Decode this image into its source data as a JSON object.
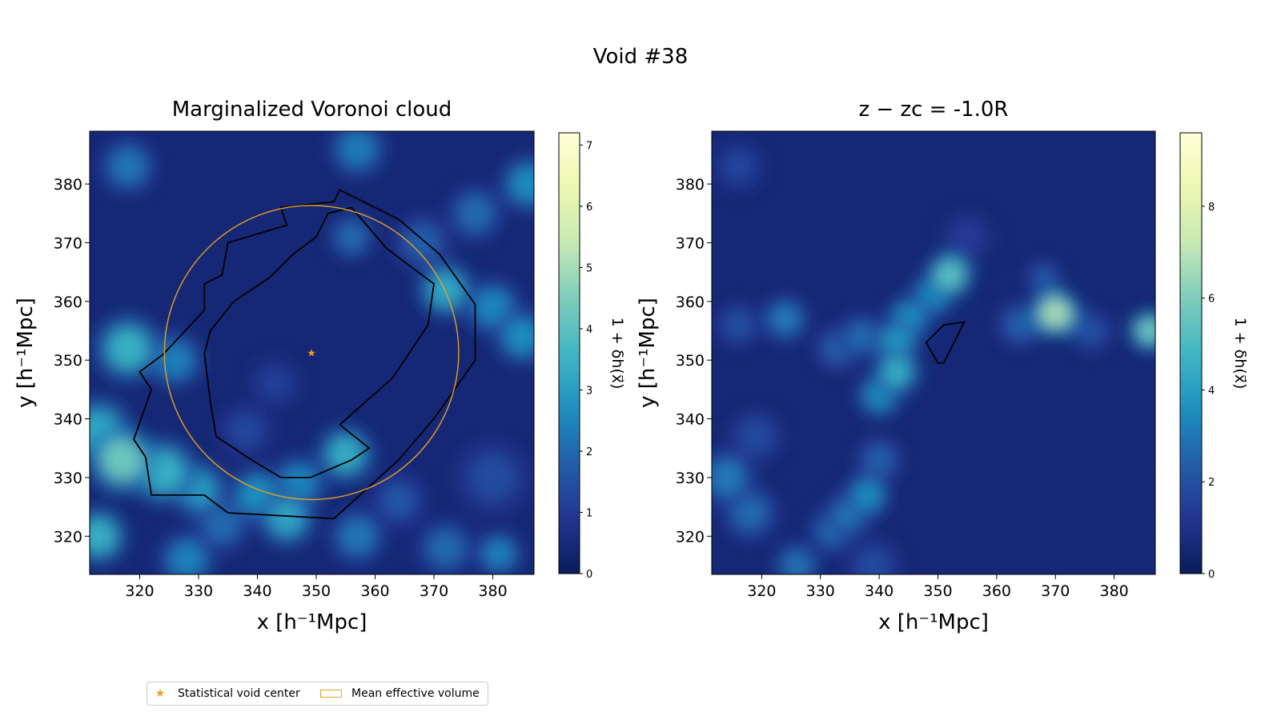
{
  "figure": {
    "suptitle": "Void #38"
  },
  "colors": {
    "colormap": "YlGnBu",
    "contour": "#000000",
    "circle": "#E8A020",
    "center_marker": "#E8A020"
  },
  "legend": {
    "center_label": "Statistical void center",
    "volume_label": "Mean effective volume"
  },
  "chart_data": [
    {
      "type": "heatmap",
      "title": "Marginalized Voronoi cloud",
      "xlabel": "x [h⁻¹Mpc]",
      "ylabel": "y [h⁻¹Mpc]",
      "xlim": [
        311.5,
        387
      ],
      "ylim": [
        313.5,
        389
      ],
      "xticks": [
        320,
        330,
        340,
        350,
        360,
        370,
        380
      ],
      "yticks": [
        320,
        330,
        340,
        350,
        360,
        370,
        380
      ],
      "colorbar": {
        "label": "1 + δh(x⃗)",
        "min": 0,
        "max": 7.2,
        "ticks": [
          0,
          1,
          2,
          3,
          4,
          5,
          6,
          7
        ]
      },
      "void_center": [
        349.2,
        351.3
      ],
      "effective_radius": 25,
      "contours": [
        [
          [
            344,
            376
          ],
          [
            353,
            377
          ],
          [
            354,
            379
          ],
          [
            364,
            374
          ],
          [
            371,
            368
          ],
          [
            377,
            359.5
          ],
          [
            377,
            350
          ],
          [
            370,
            340
          ],
          [
            364,
            333
          ],
          [
            353,
            323
          ],
          [
            335,
            324
          ],
          [
            331,
            327
          ],
          [
            322,
            327
          ],
          [
            321,
            333.5
          ],
          [
            319,
            336.5
          ],
          [
            322,
            345
          ],
          [
            320,
            348
          ],
          [
            324,
            351
          ],
          [
            331,
            358.5
          ],
          [
            331,
            363
          ],
          [
            334,
            364.5
          ],
          [
            335,
            370
          ],
          [
            345,
            373
          ]
        ],
        [
          [
            346,
            368
          ],
          [
            350,
            371
          ],
          [
            352,
            375
          ],
          [
            356,
            376
          ],
          [
            362,
            369
          ],
          [
            370,
            363
          ],
          [
            369,
            356
          ],
          [
            363,
            347
          ],
          [
            354,
            339
          ],
          [
            359,
            335
          ],
          [
            356,
            333
          ],
          [
            349,
            330
          ],
          [
            344,
            330
          ],
          [
            339,
            333
          ],
          [
            333,
            337
          ],
          [
            332,
            343
          ],
          [
            331,
            351
          ],
          [
            332,
            355
          ],
          [
            336,
            360
          ],
          [
            342,
            364
          ]
        ]
      ],
      "density_features": [
        {
          "x": 318,
          "y": 383,
          "v": 2.2,
          "r": 3
        },
        {
          "x": 357,
          "y": 386,
          "v": 2.3,
          "r": 3
        },
        {
          "x": 386,
          "y": 380,
          "v": 2.6,
          "r": 3
        },
        {
          "x": 377,
          "y": 375,
          "v": 2.0,
          "r": 3
        },
        {
          "x": 368,
          "y": 370,
          "v": 1.8,
          "r": 3
        },
        {
          "x": 356,
          "y": 371,
          "v": 2.0,
          "r": 2.5
        },
        {
          "x": 372,
          "y": 362,
          "v": 3.2,
          "r": 3
        },
        {
          "x": 380,
          "y": 359,
          "v": 2.5,
          "r": 3
        },
        {
          "x": 385,
          "y": 354,
          "v": 2.6,
          "r": 3
        },
        {
          "x": 318,
          "y": 352,
          "v": 3.4,
          "r": 3.5
        },
        {
          "x": 326,
          "y": 350,
          "v": 2.4,
          "r": 3
        },
        {
          "x": 313,
          "y": 338,
          "v": 3.2,
          "r": 3.5
        },
        {
          "x": 317,
          "y": 333,
          "v": 4.2,
          "r": 3.5
        },
        {
          "x": 324,
          "y": 331,
          "v": 3.4,
          "r": 3.5
        },
        {
          "x": 330,
          "y": 328,
          "v": 2.9,
          "r": 3
        },
        {
          "x": 340,
          "y": 327,
          "v": 2.7,
          "r": 3
        },
        {
          "x": 347,
          "y": 329,
          "v": 2.5,
          "r": 3
        },
        {
          "x": 355,
          "y": 334,
          "v": 3.3,
          "r": 3
        },
        {
          "x": 345,
          "y": 323,
          "v": 3.1,
          "r": 3
        },
        {
          "x": 357,
          "y": 320,
          "v": 2.2,
          "r": 3
        },
        {
          "x": 372,
          "y": 318,
          "v": 2.0,
          "r": 3
        },
        {
          "x": 381,
          "y": 317,
          "v": 2.4,
          "r": 2.5
        },
        {
          "x": 364,
          "y": 326,
          "v": 1.6,
          "r": 3
        },
        {
          "x": 313,
          "y": 320,
          "v": 3.4,
          "r": 3
        },
        {
          "x": 334,
          "y": 322,
          "v": 2.0,
          "r": 3
        },
        {
          "x": 328,
          "y": 316,
          "v": 2.4,
          "r": 3
        },
        {
          "x": 380,
          "y": 330,
          "v": 1.4,
          "r": 4
        },
        {
          "x": 338,
          "y": 338,
          "v": 1.3,
          "r": 3
        },
        {
          "x": 343,
          "y": 346,
          "v": 1.1,
          "r": 3
        }
      ]
    },
    {
      "type": "heatmap",
      "title": "z − zc = -1.0R",
      "xlabel": "x [h⁻¹Mpc]",
      "ylabel": "y [h⁻¹Mpc]",
      "xlim": [
        311.5,
        387
      ],
      "ylim": [
        313.5,
        389
      ],
      "xticks": [
        320,
        330,
        340,
        350,
        360,
        370,
        380
      ],
      "yticks": [
        320,
        330,
        340,
        350,
        360,
        370,
        380
      ],
      "colorbar": {
        "label": "1 + δh(x⃗)",
        "min": 0,
        "max": 9.6,
        "ticks": [
          0,
          2,
          4,
          6,
          8
        ]
      },
      "contours": [
        [
          [
            348,
            353
          ],
          [
            351,
            356
          ],
          [
            354.5,
            356.5
          ],
          [
            351,
            349.5
          ],
          [
            350,
            349.5
          ]
        ]
      ],
      "density_features": [
        {
          "x": 352,
          "y": 364.5,
          "v": 5.2,
          "r": 2.5
        },
        {
          "x": 349,
          "y": 361,
          "v": 3.4,
          "r": 2.5
        },
        {
          "x": 345,
          "y": 357,
          "v": 3.6,
          "r": 2.5
        },
        {
          "x": 343,
          "y": 353,
          "v": 3.8,
          "r": 2.5
        },
        {
          "x": 343,
          "y": 348,
          "v": 4.4,
          "r": 2.5
        },
        {
          "x": 340,
          "y": 344,
          "v": 3.4,
          "r": 2.5
        },
        {
          "x": 337,
          "y": 354,
          "v": 2.6,
          "r": 2.5
        },
        {
          "x": 333,
          "y": 352,
          "v": 2.4,
          "r": 2.5
        },
        {
          "x": 324,
          "y": 357,
          "v": 3.0,
          "r": 2.5
        },
        {
          "x": 316,
          "y": 356,
          "v": 2.0,
          "r": 2.5
        },
        {
          "x": 370,
          "y": 358,
          "v": 6.6,
          "r": 2.5
        },
        {
          "x": 364,
          "y": 356,
          "v": 2.4,
          "r": 2.5
        },
        {
          "x": 368,
          "y": 364,
          "v": 2.2,
          "r": 2
        },
        {
          "x": 376,
          "y": 355,
          "v": 2.0,
          "r": 2.5
        },
        {
          "x": 386,
          "y": 355,
          "v": 5.6,
          "r": 2.2
        },
        {
          "x": 340,
          "y": 333,
          "v": 2.4,
          "r": 2.5
        },
        {
          "x": 338,
          "y": 327,
          "v": 3.4,
          "r": 2.5
        },
        {
          "x": 335,
          "y": 324,
          "v": 3.0,
          "r": 2.5
        },
        {
          "x": 332,
          "y": 321,
          "v": 2.6,
          "r": 2.5
        },
        {
          "x": 314,
          "y": 330,
          "v": 3.0,
          "r": 3
        },
        {
          "x": 318,
          "y": 324,
          "v": 2.6,
          "r": 3
        },
        {
          "x": 326,
          "y": 315,
          "v": 2.8,
          "r": 2.5
        },
        {
          "x": 319,
          "y": 337,
          "v": 1.8,
          "r": 3
        },
        {
          "x": 339,
          "y": 315,
          "v": 1.8,
          "r": 3
        },
        {
          "x": 316,
          "y": 383,
          "v": 1.6,
          "r": 3
        },
        {
          "x": 355,
          "y": 371,
          "v": 1.3,
          "r": 3
        }
      ]
    }
  ]
}
